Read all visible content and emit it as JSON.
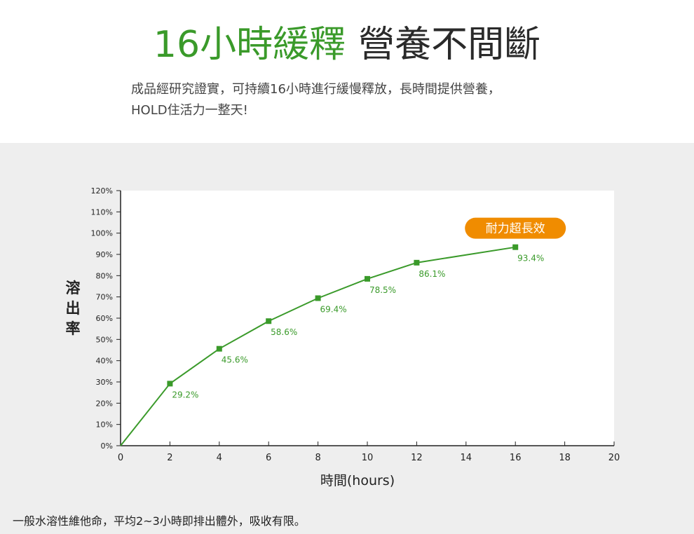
{
  "header": {
    "title_green": "16小時緩釋",
    "title_dark": "營養不間斷",
    "intro_line1": "成品經研究證實，可持續16小時進行緩慢釋放，長時間提供營養，",
    "intro_line2": "HOLD住活力一整天!"
  },
  "chart_data": {
    "type": "line",
    "ylabel": "溶出率",
    "xlabel": "時間(hours)",
    "ylim": [
      0,
      120
    ],
    "xlim": [
      0,
      20
    ],
    "y_ticks": [
      0,
      10,
      20,
      30,
      40,
      50,
      60,
      70,
      80,
      90,
      100,
      110,
      120
    ],
    "y_tick_labels": [
      "0%",
      "10%",
      "20%",
      "30%",
      "40%",
      "50%",
      "60%",
      "70%",
      "80%",
      "90%",
      "100%",
      "110%",
      "120%"
    ],
    "x_ticks": [
      0,
      2,
      4,
      6,
      8,
      10,
      12,
      14,
      16,
      18,
      20
    ],
    "x_tick_labels": [
      "0",
      "2",
      "4",
      "6",
      "8",
      "10",
      "12",
      "14",
      "16",
      "18",
      "20"
    ],
    "series": [
      {
        "x": [
          0,
          2,
          4,
          6,
          8,
          10,
          12,
          16
        ],
        "y": [
          0,
          29.2,
          45.6,
          58.6,
          69.4,
          78.5,
          86.1,
          93.4
        ],
        "labels": [
          "",
          "29.2%",
          "45.6%",
          "58.6%",
          "69.4%",
          "78.5%",
          "86.1%",
          "93.4%"
        ],
        "color": "#3a9a2a"
      }
    ],
    "annotation": {
      "text": "耐力超長效",
      "color": "#f08c00",
      "x": 16,
      "y": 93.4
    },
    "grid": false,
    "legend": "none"
  },
  "footer": {
    "note": "一般水溶性維他命，平均2~3小時即排出體外，吸收有限。"
  }
}
